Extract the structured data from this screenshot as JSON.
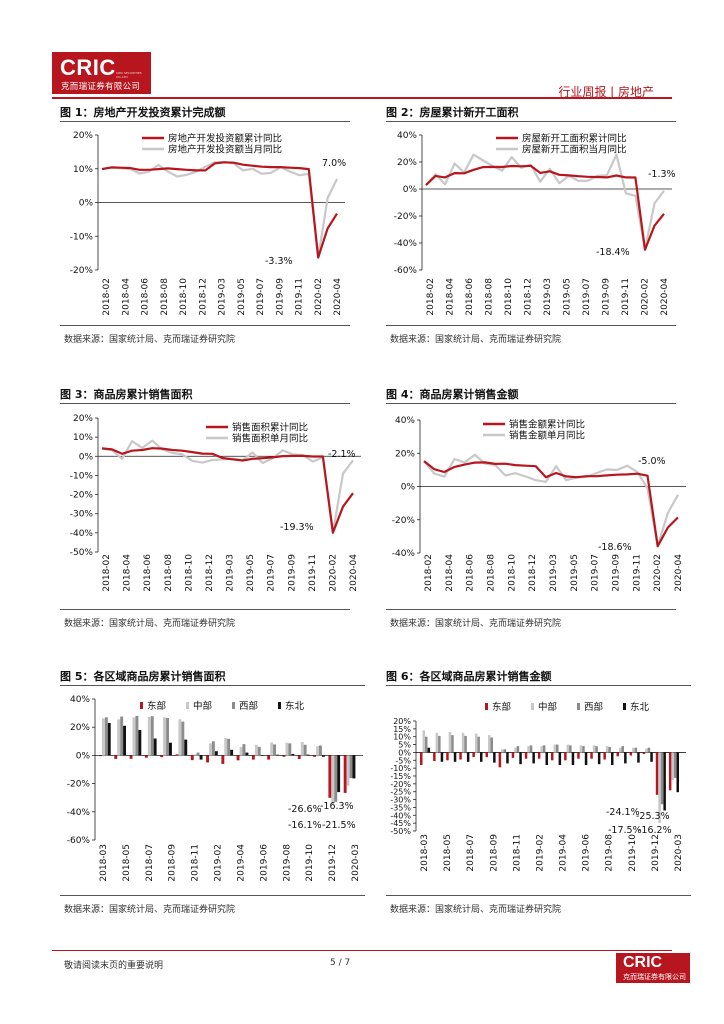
{
  "header": {
    "logo_text": "CRIC",
    "logo_subtext": "克而瑞证券有限公司",
    "logo_tiny": "CRIC SECURITIES CO.,LTD",
    "section_tag": "行业周报 | 房地产"
  },
  "footer": {
    "note": "敬请阅读末页的重要说明",
    "page": "5 / 7",
    "logo_text": "CRIC",
    "logo_subtext": "克而瑞证券有限公司"
  },
  "colors": {
    "primary": "#b8161e",
    "secondary": "#c8c8c8",
    "gray": "#8c8c8c",
    "black": "#111111"
  },
  "chart_data": [
    {
      "id": "fig1",
      "type": "line",
      "title": "图 1：房地产开发投资累计完成额",
      "source": "数据来源：国家统计局、克而瑞证券研究院",
      "x_ticks": [
        "2018-02",
        "2018-04",
        "2018-06",
        "2018-08",
        "2018-10",
        "2018-12",
        "2019-03",
        "2019-05",
        "2019-07",
        "2019-09",
        "2019-11",
        "2020-02",
        "2020-04"
      ],
      "y_ticks": [
        "20%",
        "10%",
        "0%",
        "-10%",
        "-20%"
      ],
      "ylim": [
        -20,
        20
      ],
      "legend": "top-left",
      "series": [
        {
          "name": "房地产开发投资额累计同比",
          "color": "#b8161e",
          "values": [
            9.9,
            10.4,
            10.3,
            10.2,
            9.7,
            9.7,
            9.9,
            10.1,
            9.9,
            9.7,
            9.5,
            9.5,
            11.6,
            11.9,
            11.8,
            11.2,
            10.9,
            10.6,
            10.5,
            10.5,
            10.3,
            10.2,
            9.9,
            -16.3,
            -7.7,
            -3.3
          ]
        },
        {
          "name": "房地产开发投资额当月同比",
          "color": "#c8c8c8",
          "values": [
            9.9,
            10.4,
            10.2,
            10.0,
            8.6,
            9.2,
            11.1,
            9.2,
            7.7,
            8.2,
            9.1,
            10.6,
            11.9,
            12.0,
            11.6,
            9.5,
            10.0,
            8.5,
            8.8,
            10.5,
            9.2,
            8.1,
            8.5,
            -16.3,
            1.3,
            7.0
          ]
        }
      ],
      "annotations": [
        "7.0%",
        "-3.3%"
      ]
    },
    {
      "id": "fig2",
      "type": "line",
      "title": "图 2：房屋累计新开工面积",
      "source": "数据来源：国家统计局、克而瑞证券研究院",
      "x_ticks": [
        "2018-02",
        "2018-04",
        "2018-06",
        "2018-08",
        "2018-10",
        "2018-12",
        "2019-03",
        "2019-05",
        "2019-07",
        "2019-09",
        "2019-11",
        "2020-02",
        "2020-04"
      ],
      "y_ticks": [
        "40%",
        "20%",
        "0%",
        "-20%",
        "-40%",
        "-60%"
      ],
      "ylim": [
        -60,
        40
      ],
      "legend": "top-center",
      "series": [
        {
          "name": "房屋新开工面积累计同比",
          "color": "#b8161e",
          "values": [
            2.9,
            9.7,
            8.6,
            11.8,
            11.6,
            14.2,
            16.2,
            16.4,
            16.3,
            17.0,
            16.8,
            17.2,
            11.9,
            13.1,
            10.5,
            10.1,
            9.5,
            9.0,
            8.9,
            8.6,
            10.0,
            8.6,
            8.5,
            -44.9,
            -27.2,
            -18.4
          ]
        },
        {
          "name": "房屋新开工面积当月同比",
          "color": "#c8c8c8",
          "values": [
            2.9,
            11.0,
            3.5,
            18.9,
            12.3,
            25.4,
            21.1,
            17.0,
            13.6,
            23.6,
            15.7,
            18.0,
            5.4,
            15.0,
            4.3,
            9.7,
            6.1,
            6.1,
            9.7,
            10.2,
            25.4,
            -3.2,
            -5.0,
            -44.9,
            -10.7,
            -1.3
          ]
        }
      ],
      "annotations": [
        "-1.3%",
        "-18.4%"
      ]
    },
    {
      "id": "fig3",
      "type": "line",
      "title": "图 3：商品房累计销售面积",
      "source": "数据来源：国家统计局、克而瑞证券研究院",
      "x_ticks": [
        "2018-02",
        "2018-04",
        "2018-06",
        "2018-08",
        "2018-10",
        "2018-12",
        "2019-03",
        "2019-05",
        "2019-07",
        "2019-09",
        "2019-11",
        "2020-02",
        "2020-04"
      ],
      "y_ticks": [
        "20%",
        "10%",
        "0%",
        "-10%",
        "-20%",
        "-30%",
        "-40%",
        "-50%"
      ],
      "ylim": [
        -50,
        20
      ],
      "legend": "top-center",
      "series": [
        {
          "name": "销售面积累计同比",
          "color": "#b8161e",
          "values": [
            4.1,
            3.6,
            1.3,
            2.9,
            3.3,
            4.2,
            4.0,
            3.3,
            2.9,
            2.2,
            1.4,
            1.3,
            -0.9,
            -1.6,
            -2.2,
            -1.3,
            -1.0,
            -0.6,
            0.1,
            0.2,
            0.2,
            -0.1,
            -0.1,
            -39.9,
            -26.3,
            -19.3
          ]
        },
        {
          "name": "销售面积单月同比",
          "color": "#c8c8c8",
          "values": [
            4.1,
            3.2,
            -1.3,
            7.9,
            4.4,
            8.2,
            3.6,
            1.7,
            1.0,
            -2.4,
            -3.3,
            -2.0,
            -1.6,
            -1.2,
            -2.0,
            2.0,
            -3.5,
            -1.0,
            3.1,
            1.0,
            0.6,
            -2.7,
            -0.6,
            -39.9,
            -9.1,
            -2.1
          ]
        }
      ],
      "annotations": [
        "-2.1%",
        "-19.3%"
      ]
    },
    {
      "id": "fig4",
      "type": "line",
      "title": "图 4：商品房累计销售金额",
      "source": "数据来源：国家统计局、克而瑞证券研究院",
      "x_ticks": [
        "2018-02",
        "2018-04",
        "2018-06",
        "2018-08",
        "2018-10",
        "2018-12",
        "2019-03",
        "2019-05",
        "2019-07",
        "2019-09",
        "2019-11",
        "2020-02",
        "2020-04"
      ],
      "y_ticks": [
        "40%",
        "20%",
        "0%",
        "-20%",
        "-40%"
      ],
      "ylim": [
        -40,
        40
      ],
      "legend": "top-center",
      "series": [
        {
          "name": "销售金额累计同比",
          "color": "#b8161e",
          "values": [
            15.3,
            10.4,
            8.7,
            11.8,
            13.2,
            14.4,
            14.5,
            13.6,
            13.7,
            12.9,
            12.5,
            12.2,
            5.6,
            8.1,
            6.1,
            5.6,
            6.2,
            6.2,
            6.7,
            7.1,
            7.3,
            7.7,
            6.5,
            -35.9,
            -24.7,
            -18.6
          ]
        },
        {
          "name": "销售金额单月同比",
          "color": "#c8c8c8",
          "values": [
            15.3,
            7.8,
            5.9,
            16.5,
            14.5,
            19.1,
            13.8,
            13.0,
            6.7,
            8.0,
            6.0,
            3.8,
            2.8,
            12.2,
            3.8,
            5.4,
            5.8,
            8.1,
            10.3,
            9.9,
            12.5,
            8.6,
            -1.0,
            -35.9,
            -16.0,
            -5.0
          ]
        }
      ],
      "annotations": [
        "-5.0%",
        "-18.6%"
      ]
    },
    {
      "id": "fig5",
      "type": "bar",
      "title": "图 5：各区域商品房累计销售面积",
      "source": "数据来源：国家统计局、克而瑞证券研究院",
      "x_ticks": [
        "2018-03",
        "2018-05",
        "2018-07",
        "2018-09",
        "2018-11",
        "2019-02",
        "2019-04",
        "2019-06",
        "2019-08",
        "2019-10",
        "2019-12",
        "2020-03"
      ],
      "y_ticks": [
        "40%",
        "20%",
        "0%",
        "-20%",
        "-40%",
        "-60%"
      ],
      "ylim": [
        -60,
        40
      ],
      "legend": "top-center",
      "series": [
        {
          "name": "东部",
          "color": "#b8161e",
          "values": [
            -0.5,
            -2.5,
            -2.4,
            -1.6,
            -1.2,
            0.8,
            -3.3,
            -5.0,
            -6.0,
            -3.5,
            -3.0,
            -3.0,
            -1.0,
            -2.5,
            -1.0,
            -30.1,
            -26.6
          ]
        },
        {
          "name": "中部",
          "color": "#c8c8c8",
          "values": [
            26.3,
            25.6,
            27.0,
            27.3,
            27.0,
            25.6,
            0.7,
            8.5,
            12.3,
            6.0,
            7.5,
            9.2,
            9.0,
            9.5,
            6.6,
            -35.0,
            -21.5
          ]
        },
        {
          "name": "西部",
          "color": "#8c8c8c",
          "values": [
            27.0,
            27.5,
            28.0,
            27.8,
            26.5,
            24.0,
            2.0,
            10.0,
            11.8,
            8.0,
            6.0,
            7.8,
            8.5,
            7.5,
            7.0,
            -33.0,
            -16.1
          ]
        },
        {
          "name": "东北",
          "color": "#111111",
          "values": [
            23.0,
            21.0,
            18.0,
            12.0,
            9.0,
            11.2,
            -3.0,
            3.0,
            4.0,
            2.0,
            0.2,
            0.5,
            1.0,
            0.6,
            -1.0,
            -26.0,
            -16.3
          ]
        }
      ],
      "annotations": [
        "-26.6%",
        "-16.3%",
        "-16.1%",
        "-21.5%"
      ]
    },
    {
      "id": "fig6",
      "type": "bar",
      "title": "图 6：各区域商品房累计销售金额",
      "source": "数据来源：国家统计局、克而瑞证券研究院",
      "x_ticks": [
        "2018-03",
        "2018-05",
        "2018-07",
        "2018-09",
        "2018-11",
        "2019-02",
        "2019-04",
        "2019-06",
        "2019-08",
        "2019-10",
        "2019-12",
        "2020-03"
      ],
      "y_ticks": [
        "20%",
        "15%",
        "10%",
        "5%",
        "0%",
        "-5%",
        "-10%",
        "-15%",
        "-20%",
        "-25%",
        "-30%",
        "-35%",
        "-40%",
        "-45%",
        "-50%"
      ],
      "ylim": [
        -50,
        20
      ],
      "legend": "top-center",
      "series": [
        {
          "name": "东部",
          "color": "#b8161e",
          "values": [
            -8.0,
            -5.5,
            -5.0,
            -4.5,
            -3.0,
            -3.0,
            -9.5,
            -3.5,
            -4.0,
            -4.0,
            -5.0,
            -5.0,
            -4.0,
            -4.0,
            -4.5,
            -2.5,
            -2.0,
            -1.0,
            -27.0,
            -24.1
          ]
        },
        {
          "name": "中部",
          "color": "#c8c8c8",
          "values": [
            14.0,
            12.5,
            13.0,
            12.5,
            12.0,
            11.0,
            2.0,
            3.0,
            4.0,
            4.0,
            5.0,
            5.0,
            4.5,
            4.5,
            4.0,
            3.0,
            3.0,
            2.5,
            -45.0,
            -17.5
          ]
        },
        {
          "name": "西部",
          "color": "#8c8c8c",
          "values": [
            10.0,
            10.5,
            11.0,
            10.5,
            10.0,
            9.5,
            2.0,
            4.0,
            4.5,
            4.5,
            5.0,
            4.5,
            4.0,
            4.0,
            3.5,
            4.0,
            3.0,
            3.0,
            -33.0,
            -16.2
          ]
        },
        {
          "name": "东北",
          "color": "#111111",
          "values": [
            3.0,
            -6.0,
            -6.0,
            -6.0,
            -6.0,
            -6.5,
            -7.0,
            -7.5,
            -7.0,
            -8.0,
            -8.0,
            -8.0,
            -8.0,
            -7.5,
            -8.0,
            -7.0,
            -6.5,
            -6.0,
            -37.0,
            -25.3
          ]
        }
      ],
      "annotations": [
        "-24.1%",
        "-25.3%",
        "-17.5%",
        "-16.2%"
      ]
    }
  ]
}
